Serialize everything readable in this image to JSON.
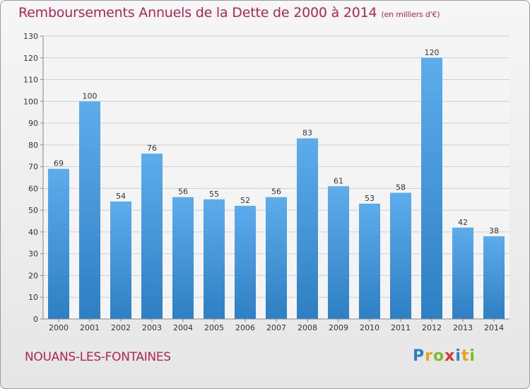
{
  "chart_data": {
    "type": "bar",
    "title": "Remboursements Annuels de la Dette de 2000 à 2014",
    "unit_note": "(en milliers d'€)",
    "categories": [
      "2000",
      "2001",
      "2002",
      "2003",
      "2004",
      "2005",
      "2006",
      "2007",
      "2008",
      "2009",
      "2010",
      "2011",
      "2012",
      "2013",
      "2014"
    ],
    "values": [
      69,
      100,
      54,
      76,
      56,
      55,
      52,
      56,
      83,
      61,
      53,
      58,
      120,
      42,
      38
    ],
    "ylim": [
      0,
      130
    ],
    "yticks": [
      0,
      10,
      20,
      30,
      40,
      50,
      60,
      70,
      80,
      90,
      100,
      110,
      120,
      130
    ],
    "grid": true,
    "xlabel": "",
    "ylabel": ""
  },
  "footer": {
    "town": "NOUANS-LES-FONTAINES"
  },
  "logo": {
    "letters": [
      {
        "char": "P",
        "color": "#2f7fc7"
      },
      {
        "char": "r",
        "color": "#e8a21a"
      },
      {
        "char": "o",
        "color": "#7dbb2a"
      },
      {
        "char": "x",
        "color": "#d23a2a"
      },
      {
        "char": "i",
        "color": "#2f7fc7"
      },
      {
        "char": "t",
        "color": "#e8a21a"
      },
      {
        "char": "i",
        "color": "#7dbb2a"
      }
    ]
  },
  "colors": {
    "title": "#b0245a",
    "bar_light": "#5dacec",
    "bar_dark": "#2e7fc3",
    "grid": "#d0d0d0"
  }
}
